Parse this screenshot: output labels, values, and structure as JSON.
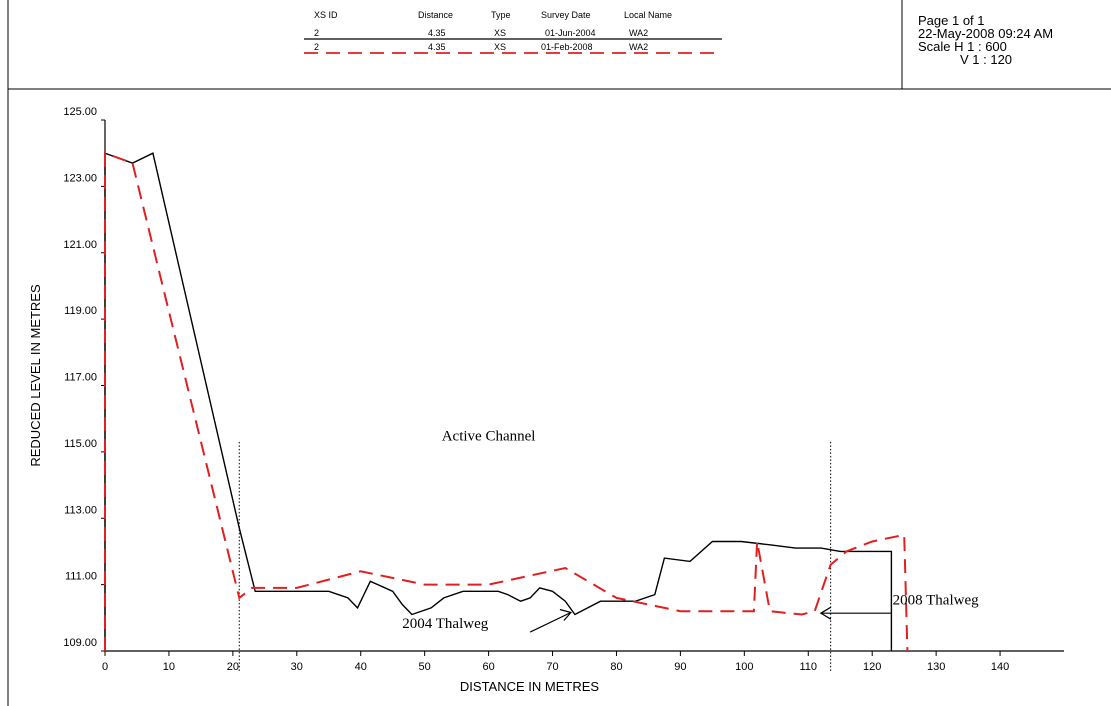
{
  "legend": {
    "headers": [
      "XS ID",
      "Distance",
      "Type",
      "Survey Date",
      "Local Name"
    ],
    "rows": [
      {
        "xs_id": "2",
        "distance": "4.35",
        "type": "XS",
        "survey_date": "01-Jun-2004",
        "local_name": "WA2",
        "color": "#000000",
        "style": "solid"
      },
      {
        "xs_id": "2",
        "distance": "4.35",
        "type": "XS",
        "survey_date": "01-Feb-2008",
        "local_name": "WA2",
        "color": "#e02020",
        "style": "dashed"
      }
    ]
  },
  "page_info": {
    "page": "Page 1 of 1",
    "datetime": "22-May-2008 09:24 AM",
    "scale_h": "Scale H 1 : 600",
    "scale_v": "V 1 : 120"
  },
  "annotations": {
    "active_channel": "Active Channel",
    "thalweg_2004": "2004 Thalweg",
    "thalweg_2008": "2008 Thalweg"
  },
  "chart_data": {
    "type": "line",
    "xlabel": "DISTANCE IN METRES",
    "ylabel": "REDUCED LEVEL IN METRES",
    "xlim": [
      0,
      150
    ],
    "ylim": [
      109,
      125
    ],
    "xticks": [
      0,
      10,
      20,
      30,
      40,
      50,
      60,
      70,
      80,
      90,
      100,
      110,
      120,
      130,
      140
    ],
    "yticks": [
      "109.00",
      "111.00",
      "113.00",
      "115.00",
      "117.00",
      "119.00",
      "121.00",
      "123.00",
      "125.00"
    ],
    "grid": false,
    "active_channel_bounds": [
      21,
      113.5
    ],
    "thalweg_2004": {
      "x": 73.5,
      "y": 110.1
    },
    "thalweg_2008": {
      "x": 111.5,
      "y": 110.2
    },
    "series": [
      {
        "name": "01-Jun-2004",
        "color": "#000000",
        "dash": "solid",
        "x": [
          0,
          0,
          4.3,
          7.5,
          21,
          23.5,
          26,
          30,
          35,
          38,
          39.5,
          41.5,
          45,
          46.5,
          48,
          51,
          53,
          56,
          58,
          60,
          61.5,
          63,
          65,
          66.5,
          68,
          70,
          72,
          73.5,
          77.5,
          80.5,
          83,
          86,
          87.5,
          91.5,
          95,
          99.5,
          104,
          108,
          112,
          115,
          119,
          123,
          123
        ],
        "y": [
          109,
          124,
          123.7,
          124.0,
          112.7,
          110.8,
          110.8,
          110.8,
          110.8,
          110.6,
          110.3,
          111.1,
          110.8,
          110.4,
          110.1,
          110.3,
          110.6,
          110.8,
          110.8,
          110.8,
          110.8,
          110.7,
          110.5,
          110.6,
          110.9,
          110.8,
          110.5,
          110.1,
          110.5,
          110.5,
          110.5,
          110.7,
          111.8,
          111.7,
          112.3,
          112.3,
          112.2,
          112.1,
          112.1,
          112.0,
          112.0,
          112.0,
          109
        ]
      },
      {
        "name": "01-Feb-2008",
        "color": "#e02020",
        "dash": "dashed",
        "x": [
          0,
          0,
          4.3,
          21,
          23,
          30,
          40,
          50,
          60,
          72,
          80,
          90,
          96,
          101.5,
          102,
          104,
          109,
          111,
          113.5,
          116,
          120,
          125,
          125.5
        ],
        "y": [
          109,
          124,
          123.7,
          110.6,
          110.9,
          110.9,
          111.4,
          111.0,
          111.0,
          111.5,
          110.6,
          110.2,
          110.2,
          110.2,
          112.3,
          110.2,
          110.1,
          110.2,
          111.6,
          112.0,
          112.3,
          112.5,
          109
        ]
      }
    ]
  }
}
